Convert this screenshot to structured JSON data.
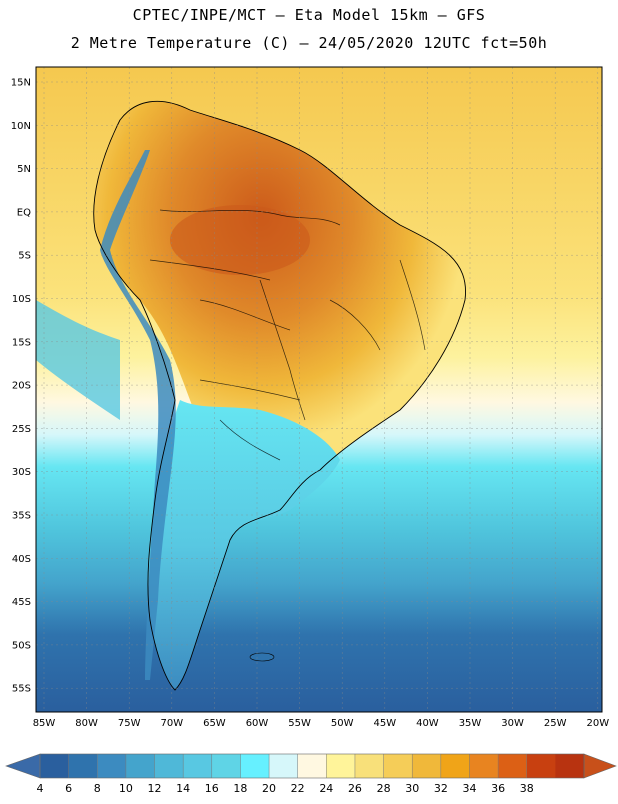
{
  "header": {
    "line1": "CPTEC/INPE/MCT –  Eta Model 15km – GFS",
    "line2": "2 Metre Temperature (C) – 24/05/2020 12UTC fct=50h"
  },
  "map": {
    "lat_labels": [
      "15N",
      "10N",
      "5N",
      "EQ",
      "5S",
      "10S",
      "15S",
      "20S",
      "25S",
      "30S",
      "35S",
      "40S",
      "45S",
      "50S",
      "55S"
    ],
    "lon_labels": [
      "85W",
      "80W",
      "75W",
      "70W",
      "65W",
      "60W",
      "55W",
      "50W",
      "45W",
      "40W",
      "35W",
      "30W",
      "25W",
      "20W"
    ],
    "colors": {
      "ocean_north": "#f7d560",
      "ocean_mid": "#fdf29a",
      "land_hot": "#e08a2a",
      "land_very_hot": "#cc5a1a",
      "andes": "#4aa8c8",
      "cold_land": "#5fd4e6",
      "ocean_south": "#2f73ad"
    }
  },
  "colorbar": {
    "labels": [
      "4",
      "6",
      "8",
      "10",
      "12",
      "14",
      "16",
      "18",
      "20",
      "22",
      "24",
      "26",
      "28",
      "30",
      "32",
      "34",
      "36",
      "38"
    ],
    "colors": [
      "#2a5f9e",
      "#2f73ad",
      "#3c8bc0",
      "#44a4cc",
      "#4fb8d8",
      "#58c8e2",
      "#5fd4e6",
      "#66f0ff",
      "#d6f7fa",
      "#fff8e1",
      "#fff49a",
      "#f8e07a",
      "#f5cd58",
      "#f0b83a",
      "#f0a418",
      "#e88420",
      "#dc6015",
      "#c84010",
      "#b83310"
    ],
    "triangle_left": "#3a6aa8",
    "triangle_right": "#c8501a"
  }
}
